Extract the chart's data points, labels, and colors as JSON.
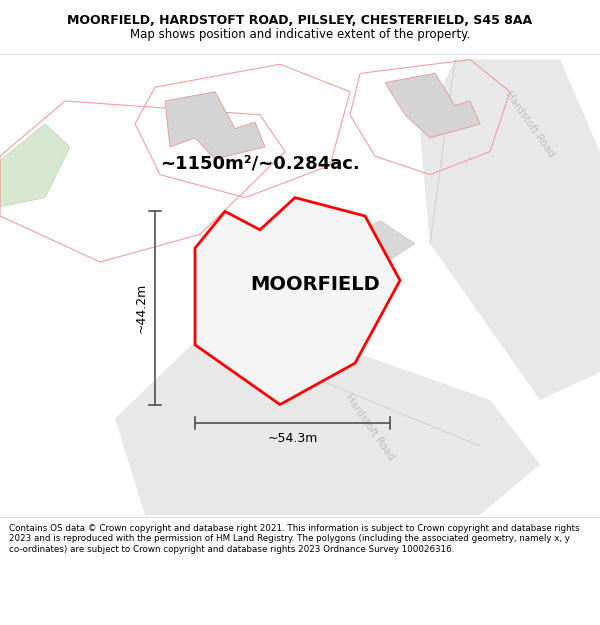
{
  "title_line1": "MOORFIELD, HARDSTOFT ROAD, PILSLEY, CHESTERFIELD, S45 8AA",
  "title_line2": "Map shows position and indicative extent of the property.",
  "property_label": "MOORFIELD",
  "area_label": "~1150m²/~0.284ac.",
  "width_label": "~54.3m",
  "height_label": "~44.2m",
  "road_label1": "Hardstoft Road",
  "road_label2": "Hardstoft Road",
  "footer_text": "Contains OS data © Crown copyright and database right 2021. This information is subject to Crown copyright and database rights 2023 and is reproduced with the permission of HM Land Registry. The polygons (including the associated geometry, namely x, y co-ordinates) are subject to Crown copyright and database rights 2023 Ordnance Survey 100026316.",
  "map_background": "#ffffff",
  "road_fill_color": "#e8e8e8",
  "road_edge_color": "#d0d0d0",
  "property_fill": "#f5f5f5",
  "property_outline_color": "#ff0000",
  "building_fill": "#d4d4d4",
  "building_edge_color": "#e8a0a0",
  "plot_outline_color": "#f0a0a0",
  "green_fill": "#d8e8d0",
  "dim_line_color": "#505050",
  "road_text_color": "#c0c0c0",
  "footer_bg": "#ffffff",
  "title_fontsize": 9.0,
  "subtitle_fontsize": 8.5,
  "area_fontsize": 13,
  "label_fontsize": 14,
  "dim_fontsize": 9,
  "road_fontsize": 7.5,
  "footer_fontsize": 6.3
}
